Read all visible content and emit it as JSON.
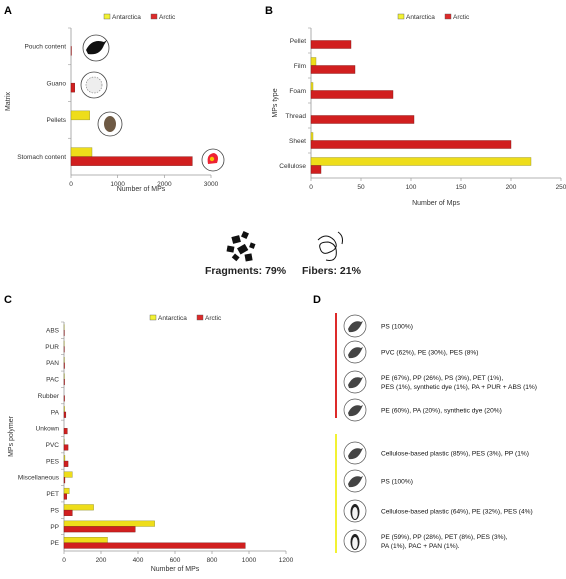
{
  "colors": {
    "antarctica": "#f2f233",
    "arctic": "#dd2a2a",
    "axis": "#9a9a9a",
    "red_bar": "#d11f1f",
    "yellow_bar": "#eedd1a"
  },
  "panel_letters": {
    "a": "A",
    "b": "B",
    "c": "C",
    "d": "D"
  },
  "middle": {
    "fragments": "Fragments: 79%",
    "fibers": "Fibers: 21%"
  },
  "chart_data": [
    {
      "id": "A",
      "type": "bar",
      "orientation": "horizontal",
      "categories": [
        "Pouch content",
        "Guano",
        "Pellets",
        "Stomach content"
      ],
      "series": [
        {
          "name": "Antarctica",
          "values": [
            0,
            0,
            400,
            450
          ]
        },
        {
          "name": "Arctic",
          "values": [
            10,
            80,
            0,
            2600
          ]
        }
      ],
      "ylabel": "Matrix",
      "xlabel": "Number of MPs",
      "xticks": [
        0,
        1000,
        2000,
        3000
      ],
      "xlim": [
        0,
        3000
      ],
      "legend": "top"
    },
    {
      "id": "B",
      "type": "bar",
      "orientation": "horizontal",
      "categories": [
        "Pellet",
        "Film",
        "Foam",
        "Thread",
        "Sheet",
        "Cellulose"
      ],
      "series": [
        {
          "name": "Antarctica",
          "values": [
            0,
            5,
            2,
            0,
            2,
            220
          ]
        },
        {
          "name": "Arctic",
          "values": [
            40,
            44,
            82,
            103,
            200,
            10
          ]
        }
      ],
      "ylabel": "MPs type",
      "xlabel": "Number of Mps",
      "xticks": [
        0,
        50,
        100,
        150,
        200,
        250
      ],
      "xlim": [
        0,
        250
      ],
      "legend": "top"
    },
    {
      "id": "C",
      "type": "bar",
      "orientation": "horizontal",
      "categories": [
        "ABS",
        "PUR",
        "PAN",
        "PAC",
        "Rubber",
        "PA",
        "Unkown",
        "PVC",
        "PES",
        "Miscellaneous",
        "PET",
        "PS",
        "PP",
        "PE"
      ],
      "series": [
        {
          "name": "Antarctica",
          "values": [
            1,
            1,
            2,
            2,
            0,
            3,
            0,
            2,
            5,
            45,
            28,
            160,
            490,
            235
          ]
        },
        {
          "name": "Arctic",
          "values": [
            2,
            2,
            3,
            3,
            3,
            10,
            18,
            22,
            22,
            5,
            15,
            45,
            385,
            980
          ]
        }
      ],
      "ylabel": "MPs polymer",
      "xlabel": "Number of MPs",
      "xticks": [
        0,
        200,
        400,
        600,
        800,
        1000,
        1200
      ],
      "xlim": [
        0,
        1200
      ],
      "legend": "top"
    }
  ],
  "panel_d": {
    "arctic_rows": [
      {
        "text": "PS (100%)",
        "icon": "bird-icon"
      },
      {
        "text": "PVC (62%), PE (30%), PES (8%)",
        "icon": "bird-icon"
      },
      {
        "text": "PE (67%), PP (26%), PS (3%), PET (1%),",
        "text2": "PES (1%), synthetic dye (1%), PA + PUR + ABS (1%)",
        "icon": "bird-icon"
      },
      {
        "text": "PE (60%), PA (20%), synthetic dye (20%)",
        "icon": "bird-icon"
      }
    ],
    "antarctica_rows": [
      {
        "text": "Cellulose-based plastic (85%), PES (3%), PP (1%)",
        "icon": "bird-icon"
      },
      {
        "text": "PS (100%)",
        "icon": "bird-icon"
      },
      {
        "text": "Cellulose-based plastic (64%), PE (32%), PES (4%)",
        "icon": "penguin-icon"
      },
      {
        "text": "PE (59%), PP (28%), PET (8%), PES (3%),",
        "text2": "PA (1%), PAC + PAN (1%).",
        "icon": "penguin-icon"
      }
    ]
  }
}
